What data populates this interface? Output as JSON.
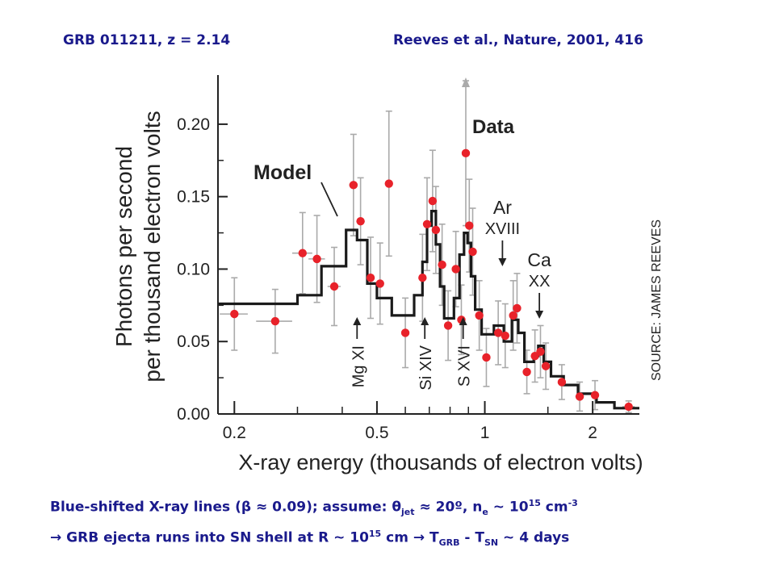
{
  "header": {
    "left": "GRB 011211, z = 2.14",
    "right": "Reeves et al., Nature, 2001, 416"
  },
  "caption": {
    "line1": {
      "a": "Blue-shifted X-ray lines (",
      "beta": "β",
      "b": " ≈ 0.09); assume: ",
      "theta": "θ",
      "theta_sub": "jet",
      "c": " ≈ 20º, n",
      "n_sub": "e",
      "d": " ~ 10",
      "exp1": "15",
      "e": " cm",
      "exp2": "-3"
    },
    "line2": {
      "a": "→ GRB ejecta runs into SN shell at R ~ 10",
      "exp": "15",
      "b": " cm → T",
      "sub1": "GRB",
      "c": " - T",
      "sub2": "SN",
      "d": " ~ 4 days"
    }
  },
  "chart_data": {
    "type": "scatter",
    "ylabel_line1": "Photons per second",
    "ylabel_line2": "per thousand electron volts",
    "xlabel": "X-ray energy (thousands of electron volts)",
    "xscale": "log",
    "xlim": [
      0.18,
      2.7
    ],
    "ylim": [
      0,
      0.22
    ],
    "xticks": [
      0.2,
      0.5,
      1,
      2
    ],
    "xtick_labels": [
      "0.2",
      "0.5",
      "1",
      "2"
    ],
    "yticks": [
      0.0,
      0.05,
      0.1,
      0.15,
      0.2
    ],
    "ytick_labels": [
      "0.00",
      "0.05",
      "0.10",
      "0.15",
      "0.20"
    ],
    "legend_model": "Model",
    "legend_data": "Data",
    "source_credit": "SOURCE: JAMES REEVES",
    "colors": {
      "data": "#e8222a",
      "model": "#1a1a1a",
      "errorbar": "#aaaaaa"
    },
    "data_points": [
      {
        "x": 0.2,
        "y": 0.069,
        "yerr": 0.025,
        "xerr": 0.018
      },
      {
        "x": 0.26,
        "y": 0.064,
        "yerr": 0.022,
        "xerr": 0.03
      },
      {
        "x": 0.31,
        "y": 0.111,
        "yerr": 0.028,
        "xerr": 0.02
      },
      {
        "x": 0.34,
        "y": 0.107,
        "yerr": 0.03,
        "xerr": 0.018
      },
      {
        "x": 0.38,
        "y": 0.088,
        "yerr": 0.027,
        "xerr": 0.016
      },
      {
        "x": 0.43,
        "y": 0.158,
        "yerr": 0.035,
        "xerr": 0.012
      },
      {
        "x": 0.45,
        "y": 0.133,
        "yerr": 0.03,
        "xerr": 0.012
      },
      {
        "x": 0.48,
        "y": 0.094,
        "yerr": 0.028,
        "xerr": 0.012
      },
      {
        "x": 0.51,
        "y": 0.09,
        "yerr": 0.028,
        "xerr": 0.012
      },
      {
        "x": 0.54,
        "y": 0.159,
        "yerr": 0.05,
        "xerr": 0.012
      },
      {
        "x": 0.6,
        "y": 0.056,
        "yerr": 0.024,
        "xerr": 0.015
      },
      {
        "x": 0.67,
        "y": 0.094,
        "yerr": 0.03,
        "xerr": 0.01
      },
      {
        "x": 0.69,
        "y": 0.131,
        "yerr": 0.032,
        "xerr": 0.01
      },
      {
        "x": 0.715,
        "y": 0.147,
        "yerr": 0.035,
        "xerr": 0.01
      },
      {
        "x": 0.73,
        "y": 0.127,
        "yerr": 0.03,
        "xerr": 0.01
      },
      {
        "x": 0.76,
        "y": 0.103,
        "yerr": 0.028,
        "xerr": 0.01
      },
      {
        "x": 0.79,
        "y": 0.061,
        "yerr": 0.024,
        "xerr": 0.01
      },
      {
        "x": 0.83,
        "y": 0.1,
        "yerr": 0.026,
        "xerr": 0.01
      },
      {
        "x": 0.86,
        "y": 0.065,
        "yerr": 0.024,
        "xerr": 0.01
      },
      {
        "x": 0.885,
        "y": 0.18,
        "yerr": 0.05,
        "xerr": 0.01,
        "arrow": true
      },
      {
        "x": 0.905,
        "y": 0.13,
        "yerr": 0.032,
        "xerr": 0.01
      },
      {
        "x": 0.925,
        "y": 0.112,
        "yerr": 0.03,
        "xerr": 0.01
      },
      {
        "x": 0.965,
        "y": 0.068,
        "yerr": 0.024,
        "xerr": 0.012
      },
      {
        "x": 1.01,
        "y": 0.039,
        "yerr": 0.02,
        "xerr": 0.012
      },
      {
        "x": 1.09,
        "y": 0.056,
        "yerr": 0.022,
        "xerr": 0.012
      },
      {
        "x": 1.14,
        "y": 0.054,
        "yerr": 0.022,
        "xerr": 0.012
      },
      {
        "x": 1.2,
        "y": 0.068,
        "yerr": 0.024,
        "xerr": 0.012
      },
      {
        "x": 1.23,
        "y": 0.073,
        "yerr": 0.024,
        "xerr": 0.012
      },
      {
        "x": 1.31,
        "y": 0.029,
        "yerr": 0.015,
        "xerr": 0.015
      },
      {
        "x": 1.38,
        "y": 0.04,
        "yerr": 0.018,
        "xerr": 0.015
      },
      {
        "x": 1.43,
        "y": 0.043,
        "yerr": 0.018,
        "xerr": 0.015
      },
      {
        "x": 1.48,
        "y": 0.033,
        "yerr": 0.016,
        "xerr": 0.015
      },
      {
        "x": 1.64,
        "y": 0.022,
        "yerr": 0.012,
        "xerr": 0.03
      },
      {
        "x": 1.84,
        "y": 0.012,
        "yerr": 0.01,
        "xerr": 0.05
      },
      {
        "x": 2.03,
        "y": 0.013,
        "yerr": 0.01,
        "xerr": 0.05
      },
      {
        "x": 2.52,
        "y": 0.005,
        "yerr": 0.004,
        "xerr": 0.1
      }
    ],
    "model_steps": [
      [
        0.18,
        0.076
      ],
      [
        0.3,
        0.076
      ],
      [
        0.3,
        0.082
      ],
      [
        0.35,
        0.082
      ],
      [
        0.35,
        0.102
      ],
      [
        0.41,
        0.102
      ],
      [
        0.41,
        0.127
      ],
      [
        0.44,
        0.127
      ],
      [
        0.44,
        0.12
      ],
      [
        0.47,
        0.12
      ],
      [
        0.47,
        0.09
      ],
      [
        0.5,
        0.09
      ],
      [
        0.5,
        0.08
      ],
      [
        0.55,
        0.08
      ],
      [
        0.55,
        0.068
      ],
      [
        0.635,
        0.068
      ],
      [
        0.635,
        0.082
      ],
      [
        0.67,
        0.082
      ],
      [
        0.67,
        0.105
      ],
      [
        0.69,
        0.105
      ],
      [
        0.69,
        0.13
      ],
      [
        0.71,
        0.13
      ],
      [
        0.71,
        0.14
      ],
      [
        0.73,
        0.14
      ],
      [
        0.73,
        0.117
      ],
      [
        0.75,
        0.117
      ],
      [
        0.75,
        0.088
      ],
      [
        0.77,
        0.088
      ],
      [
        0.77,
        0.066
      ],
      [
        0.82,
        0.066
      ],
      [
        0.82,
        0.08
      ],
      [
        0.85,
        0.08
      ],
      [
        0.85,
        0.11
      ],
      [
        0.875,
        0.11
      ],
      [
        0.875,
        0.125
      ],
      [
        0.895,
        0.125
      ],
      [
        0.895,
        0.118
      ],
      [
        0.915,
        0.118
      ],
      [
        0.915,
        0.095
      ],
      [
        0.94,
        0.095
      ],
      [
        0.94,
        0.072
      ],
      [
        0.98,
        0.072
      ],
      [
        0.98,
        0.055
      ],
      [
        1.06,
        0.055
      ],
      [
        1.06,
        0.061
      ],
      [
        1.13,
        0.061
      ],
      [
        1.13,
        0.05
      ],
      [
        1.19,
        0.05
      ],
      [
        1.19,
        0.065
      ],
      [
        1.24,
        0.065
      ],
      [
        1.24,
        0.056
      ],
      [
        1.29,
        0.056
      ],
      [
        1.29,
        0.036
      ],
      [
        1.37,
        0.036
      ],
      [
        1.37,
        0.04
      ],
      [
        1.41,
        0.04
      ],
      [
        1.41,
        0.047
      ],
      [
        1.46,
        0.047
      ],
      [
        1.46,
        0.036
      ],
      [
        1.53,
        0.036
      ],
      [
        1.53,
        0.026
      ],
      [
        1.66,
        0.026
      ],
      [
        1.66,
        0.02
      ],
      [
        1.82,
        0.02
      ],
      [
        1.82,
        0.014
      ],
      [
        2.05,
        0.014
      ],
      [
        2.05,
        0.008
      ],
      [
        2.3,
        0.008
      ],
      [
        2.3,
        0.004
      ],
      [
        2.7,
        0.004
      ]
    ],
    "annotations": [
      {
        "label": "Mg XI",
        "x": 0.44,
        "y": 0.057
      },
      {
        "label": "Si XIV",
        "x": 0.68,
        "y": 0.057
      },
      {
        "label": "S XVI",
        "x": 0.87,
        "y": 0.057
      },
      {
        "label_top": "Ar",
        "label_bottom": "XVIII",
        "x": 1.12,
        "y": 0.095
      },
      {
        "label_top": "Ca",
        "label_bottom": "XX",
        "x": 1.42,
        "y": 0.062
      }
    ]
  }
}
